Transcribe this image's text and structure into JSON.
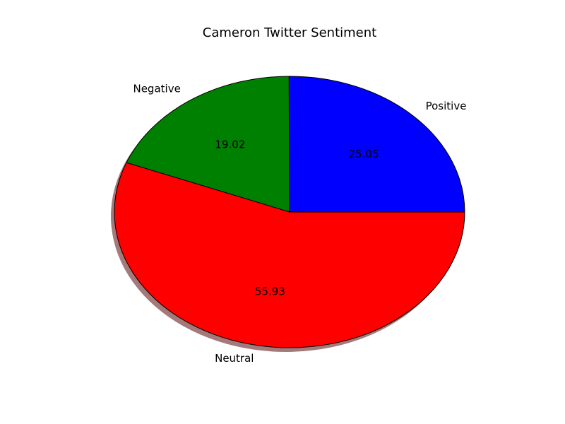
{
  "chart_data": {
    "type": "pie",
    "title": "Cameron Twitter Sentiment",
    "slices": [
      {
        "label": "Positive",
        "value": 25.05,
        "display": "25.05",
        "color": "#0000ff"
      },
      {
        "label": "Negative",
        "value": 19.02,
        "display": "19.02",
        "color": "#008000"
      },
      {
        "label": "Neutral",
        "value": 55.93,
        "display": "55.93",
        "color": "#ff0000"
      }
    ],
    "start_angle_deg": 0,
    "direction": "counterclockwise",
    "shadow": true,
    "edge_color": "#000000"
  }
}
